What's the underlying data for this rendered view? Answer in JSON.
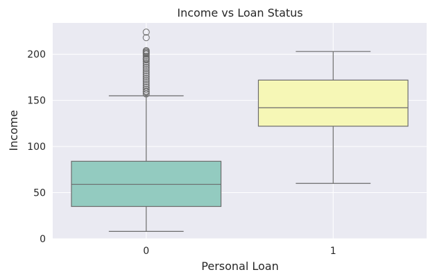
{
  "chart_data": {
    "type": "box",
    "title": "Income vs Loan Status",
    "xlabel": "Personal Loan",
    "ylabel": "Income",
    "categories": [
      "0",
      "1"
    ],
    "ylim": [
      0,
      234
    ],
    "yticks": [
      0,
      50,
      100,
      150,
      200
    ],
    "grid": true,
    "boxes": [
      {
        "category": "0",
        "whisker_low": 8,
        "q1": 35,
        "median": 59,
        "q3": 84,
        "whisker_high": 155,
        "color": "#93cbc0",
        "outliers": [
          157,
          159,
          160,
          162,
          164,
          166,
          168,
          170,
          172,
          174,
          176,
          178,
          180,
          182,
          184,
          186,
          188,
          190,
          192,
          194,
          195,
          196,
          198,
          200,
          201,
          202,
          203,
          204,
          218,
          224
        ]
      },
      {
        "category": "1",
        "whisker_low": 60,
        "q1": 122,
        "median": 142,
        "q3": 172,
        "whisker_high": 203,
        "color": "#f6f7b6",
        "outliers": []
      }
    ],
    "colors": {
      "plot_background": "#eaeaf2",
      "grid": "#ffffff",
      "line": "#6b6b6b"
    }
  }
}
